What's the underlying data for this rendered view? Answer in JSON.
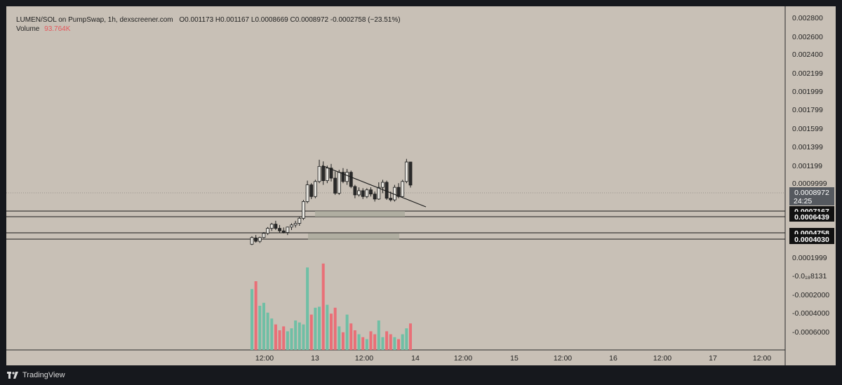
{
  "header": {
    "title": "LUMEN/SOL on PumpSwap, 1h, dexscreener.com",
    "ohlc": "O0.001173  H0.001167  L0.0008669  C0.0008972  -0.0002758 (−23.51%)",
    "volume_label": "Volume",
    "volume_value": "93.764K"
  },
  "price_badge": {
    "price": "0.0008972",
    "countdown": "24:25"
  },
  "levels": [
    {
      "label": "0.0007167",
      "value": 0.0007167
    },
    {
      "label": "0.0006439",
      "value": 0.0006439
    },
    {
      "label": "0.0004758",
      "value": 0.0004758
    },
    {
      "label": "0.0004030",
      "value": 0.000403
    }
  ],
  "footer": {
    "brand": "TradingView"
  },
  "colors": {
    "background": "#c8c0b6",
    "up": "#e8e6e0",
    "down": "#2a2a2a",
    "vol_up": "#6fbfa5",
    "vol_down": "#e96f77",
    "grid_dot": "#9a948c"
  },
  "chart_data": {
    "type": "candlestick",
    "interval": "1h",
    "y_tick_labels": [
      "0.002800",
      "0.002600",
      "0.002400",
      "0.002199",
      "0.001999",
      "0.001799",
      "0.001599",
      "0.001399",
      "0.001199",
      "0.0009999",
      "0.0001999",
      "-0.0₁₈8131",
      "-0.0002000",
      "-0.0004000",
      "-0.0006000"
    ],
    "y_range_price": [
      0.0001,
      0.0029
    ],
    "x_tick_labels": [
      "12:00",
      "13",
      "12:00",
      "14",
      "12:00",
      "15",
      "12:00",
      "16",
      "12:00",
      "17",
      "12:00"
    ],
    "candles": [
      {
        "o": 0.00019,
        "h": 0.000285,
        "l": 0.00018,
        "c": 0.00027
      },
      {
        "o": 0.000265,
        "h": 0.0003,
        "l": 0.00021,
        "c": 0.000225
      },
      {
        "o": 0.000225,
        "h": 0.00028,
        "l": 0.000205,
        "c": 0.00027
      },
      {
        "o": 0.00027,
        "h": 0.000335,
        "l": 0.00026,
        "c": 0.00032
      },
      {
        "o": 0.00032,
        "h": 0.000395,
        "l": 0.0003,
        "c": 0.00038
      },
      {
        "o": 0.00038,
        "h": 0.000445,
        "l": 0.00035,
        "c": 0.00043
      },
      {
        "o": 0.00043,
        "h": 0.00047,
        "l": 0.00036,
        "c": 0.00038
      },
      {
        "o": 0.00038,
        "h": 0.00042,
        "l": 0.00033,
        "c": 0.00035
      },
      {
        "o": 0.00035,
        "h": 0.00039,
        "l": 0.00032,
        "c": 0.00033
      },
      {
        "o": 0.00033,
        "h": 0.0004,
        "l": 0.0003,
        "c": 0.000395
      },
      {
        "o": 0.000395,
        "h": 0.00044,
        "l": 0.00036,
        "c": 0.00042
      },
      {
        "o": 0.00042,
        "h": 0.00047,
        "l": 0.00039,
        "c": 0.00044
      },
      {
        "o": 0.00044,
        "h": 0.00052,
        "l": 0.00041,
        "c": 0.0005
      },
      {
        "o": 0.0005,
        "h": 0.00072,
        "l": 0.00048,
        "c": 0.0007
      },
      {
        "o": 0.0007,
        "h": 0.00095,
        "l": 0.00068,
        "c": 0.0009
      },
      {
        "o": 0.0009,
        "h": 0.00092,
        "l": 0.00073,
        "c": 0.00076
      },
      {
        "o": 0.00076,
        "h": 0.00096,
        "l": 0.00074,
        "c": 0.00094
      },
      {
        "o": 0.00094,
        "h": 0.0012,
        "l": 0.00092,
        "c": 0.00112
      },
      {
        "o": 0.00112,
        "h": 0.00118,
        "l": 0.0009,
        "c": 0.00095
      },
      {
        "o": 0.00095,
        "h": 0.00113,
        "l": 0.00092,
        "c": 0.0011
      },
      {
        "o": 0.0011,
        "h": 0.00115,
        "l": 0.00094,
        "c": 0.00098
      },
      {
        "o": 0.00098,
        "h": 0.00106,
        "l": 0.00078,
        "c": 0.0008
      },
      {
        "o": 0.0008,
        "h": 0.00108,
        "l": 0.00078,
        "c": 0.00105
      },
      {
        "o": 0.00105,
        "h": 0.0011,
        "l": 0.00092,
        "c": 0.00094
      },
      {
        "o": 0.00094,
        "h": 0.00109,
        "l": 0.0009,
        "c": 0.00105
      },
      {
        "o": 0.00105,
        "h": 0.00107,
        "l": 0.00086,
        "c": 0.00088
      },
      {
        "o": 0.00088,
        "h": 0.0009,
        "l": 0.00074,
        "c": 0.00078
      },
      {
        "o": 0.00078,
        "h": 0.00087,
        "l": 0.00076,
        "c": 0.00083
      },
      {
        "o": 0.00083,
        "h": 0.00086,
        "l": 0.00073,
        "c": 0.00076
      },
      {
        "o": 0.00076,
        "h": 0.00086,
        "l": 0.00074,
        "c": 0.00084
      },
      {
        "o": 0.00084,
        "h": 0.00087,
        "l": 0.00076,
        "c": 0.00079
      },
      {
        "o": 0.00079,
        "h": 0.00082,
        "l": 0.0007,
        "c": 0.00073
      },
      {
        "o": 0.00073,
        "h": 0.00093,
        "l": 0.00072,
        "c": 0.00087
      },
      {
        "o": 0.00087,
        "h": 0.00096,
        "l": 0.0008,
        "c": 0.00093
      },
      {
        "o": 0.00093,
        "h": 0.00095,
        "l": 0.00072,
        "c": 0.00074
      },
      {
        "o": 0.00074,
        "h": 0.00082,
        "l": 0.0007,
        "c": 0.00072
      },
      {
        "o": 0.00072,
        "h": 0.0009,
        "l": 0.0007,
        "c": 0.00087
      },
      {
        "o": 0.00087,
        "h": 0.00092,
        "l": 0.00074,
        "c": 0.00076
      },
      {
        "o": 0.00076,
        "h": 0.00096,
        "l": 0.00075,
        "c": 0.00094
      },
      {
        "o": 0.00094,
        "h": 0.00121,
        "l": 0.00092,
        "c": 0.001173
      },
      {
        "o": 0.001173,
        "h": 0.001167,
        "l": 0.0008669,
        "c": 0.0008972
      }
    ],
    "volume": [
      62,
      70,
      45,
      48,
      38,
      32,
      26,
      20,
      24,
      19,
      22,
      30,
      28,
      26,
      84,
      36,
      43,
      44,
      88,
      46,
      37,
      43,
      24,
      18,
      36,
      27,
      20,
      16,
      13,
      11,
      19,
      16,
      30,
      13,
      19,
      16,
      13,
      11,
      16,
      22,
      27
    ]
  }
}
